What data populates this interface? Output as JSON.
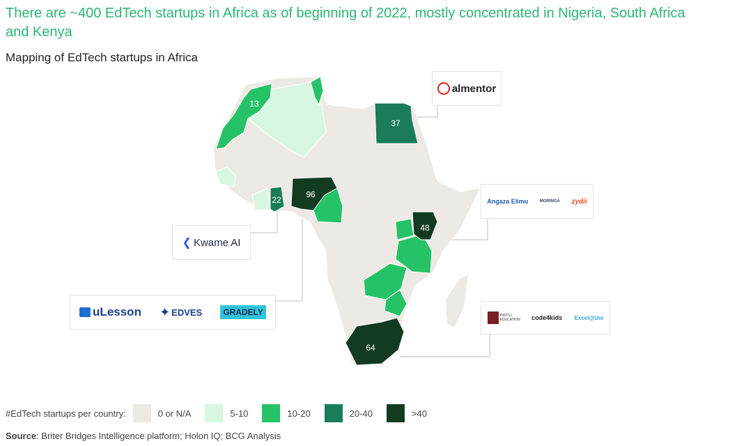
{
  "title": "There are ~400 EdTech startups in Africa as of beginning of 2022, mostly concentrated in Nigeria, South Africa and Kenya",
  "subtitle": "Mapping of EdTech startups in Africa",
  "colors": {
    "none": "#ede9e4",
    "c5_10": "#d7f7e2",
    "c10_20": "#26c267",
    "c20_40": "#1a7d57",
    "c40": "#123b22",
    "title_green": "#2bb673"
  },
  "countries": {
    "morocco": "13",
    "egypt": "37",
    "ghana": "22",
    "nigeria": "96",
    "kenya": "48",
    "south_africa": "64"
  },
  "logos": {
    "egypt": [
      "almentor"
    ],
    "kenya": [
      "Angaza Elimu",
      "MORINGA",
      "zydii"
    ],
    "ghana": [
      "Kwame AI"
    ],
    "nigeria": [
      "uLesson",
      "EDVES",
      "GRADELY"
    ],
    "south_africa": [
      "INSTILL EDUCATION",
      "code4kids",
      "Excel@Uni"
    ]
  },
  "legend": {
    "label": "#EdTech startups per country:",
    "items": [
      "0 or N/A",
      "5-10",
      "10-20",
      "20-40",
      ">40"
    ]
  },
  "source": {
    "label": "Source",
    "text": ": Briter Bridges Intelligence platform; Holon IQ; BCG Analysis"
  }
}
